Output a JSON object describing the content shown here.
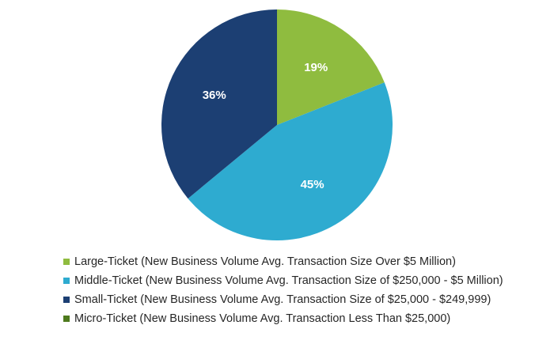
{
  "chart_data": {
    "type": "pie",
    "title": "",
    "start_angle_deg": 0,
    "direction": "clockwise",
    "legend_position": "bottom",
    "slices": [
      {
        "name": "Large-Ticket (New Business Volume Avg. Transaction Size Over $5 Million)",
        "value": 19,
        "label": "19%",
        "color": "#8fbc3f"
      },
      {
        "name": "Middle-Ticket (New Business Volume Avg. Transaction Size of $250,000 - $5 Million)",
        "value": 45,
        "label": "45%",
        "color": "#2eabd0"
      },
      {
        "name": "Small-Ticket (New Business Volume Avg. Transaction Size of $25,000 - $249,999)",
        "value": 36,
        "label": "36%",
        "color": "#1c3f73"
      },
      {
        "name": "Micro-Ticket (New Business Volume Avg. Transaction Less Than $25,000)",
        "value": 0,
        "label": "",
        "color": "#4e7a1e"
      }
    ]
  }
}
